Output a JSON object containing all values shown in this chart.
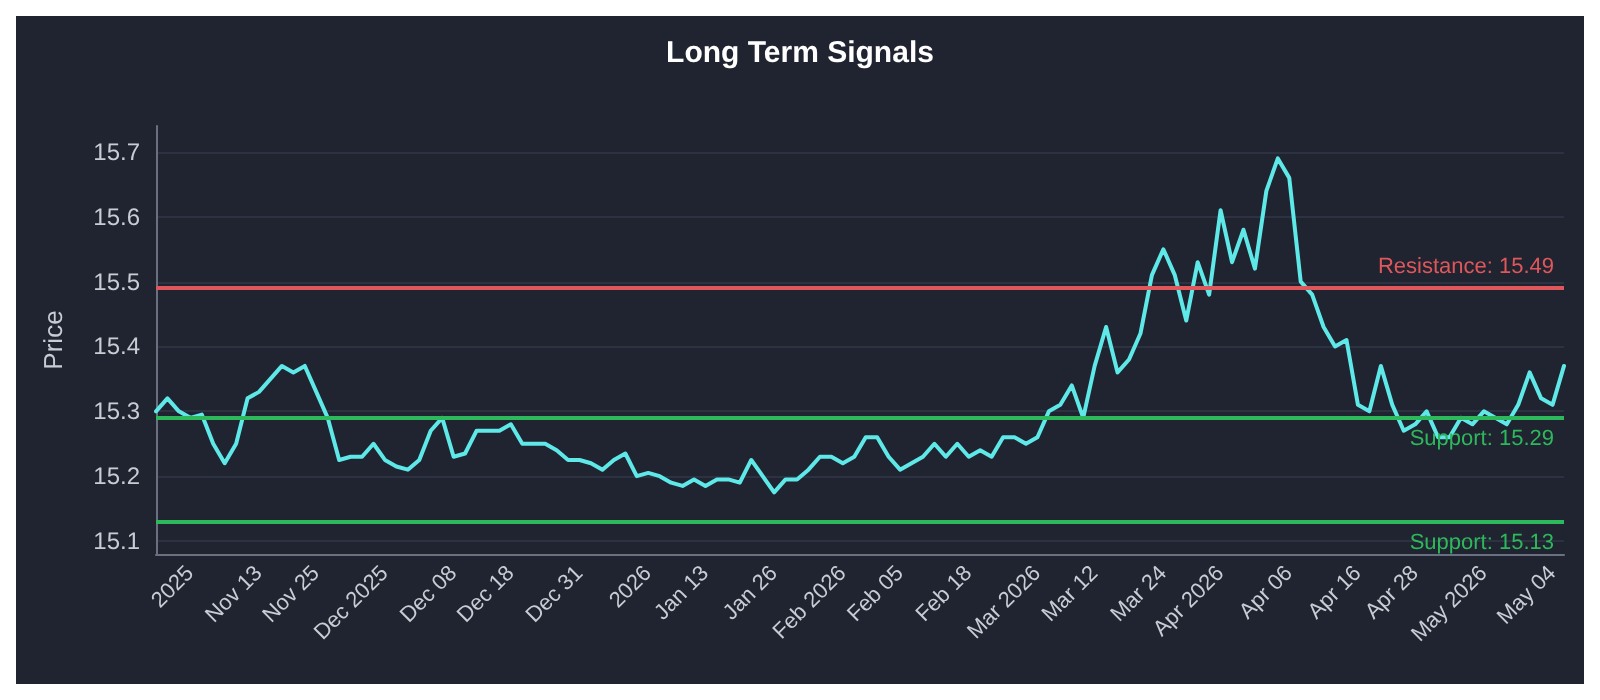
{
  "chart_data": {
    "type": "line",
    "title": "Long Term Signals",
    "ylabel": "Price",
    "categories": [
      null,
      null,
      null,
      "2025",
      null,
      null,
      null,
      null,
      null,
      "Nov 13",
      null,
      null,
      null,
      null,
      "Nov 25",
      null,
      null,
      null,
      null,
      null,
      "Dec 2025",
      null,
      null,
      null,
      null,
      null,
      "Dec 08",
      null,
      null,
      null,
      null,
      "Dec 18",
      null,
      null,
      null,
      null,
      null,
      "Dec 31",
      null,
      null,
      null,
      null,
      null,
      "2026",
      null,
      null,
      null,
      null,
      "Jan 13",
      null,
      null,
      null,
      null,
      null,
      "Jan 26",
      null,
      null,
      null,
      null,
      null,
      "Feb 2026",
      null,
      null,
      null,
      null,
      "Feb 05",
      null,
      null,
      null,
      null,
      null,
      "Feb 18",
      null,
      null,
      null,
      null,
      null,
      "Mar 2026",
      null,
      null,
      null,
      null,
      "Mar 12",
      null,
      null,
      null,
      null,
      null,
      "Mar 24",
      null,
      null,
      null,
      null,
      "Apr 2026",
      null,
      null,
      null,
      null,
      null,
      "Apr 06",
      null,
      null,
      null,
      null,
      null,
      "Apr 16",
      null,
      null,
      null,
      null,
      "Apr 28",
      null,
      null,
      null,
      null,
      null,
      "May 2026",
      null,
      null,
      null,
      null,
      null,
      "May 04",
      null
    ],
    "series": [
      {
        "color": "#5ee8e8",
        "values": [
          15.3,
          15.32,
          15.3,
          15.29,
          15.295,
          15.25,
          15.22,
          15.25,
          15.32,
          15.33,
          15.35,
          15.37,
          15.36,
          15.37,
          15.33,
          15.29,
          15.225,
          15.23,
          15.23,
          15.25,
          15.225,
          15.215,
          15.21,
          15.225,
          15.27,
          15.29,
          15.23,
          15.235,
          15.27,
          15.27,
          15.27,
          15.28,
          15.25,
          15.25,
          15.25,
          15.24,
          15.225,
          15.225,
          15.22,
          15.21,
          15.225,
          15.235,
          15.2,
          15.205,
          15.2,
          15.19,
          15.185,
          15.195,
          15.185,
          15.195,
          15.195,
          15.19,
          15.225,
          15.2,
          15.175,
          15.195,
          15.195,
          15.21,
          15.23,
          15.23,
          15.22,
          15.23,
          15.26,
          15.26,
          15.23,
          15.21,
          15.22,
          15.23,
          15.25,
          15.23,
          15.25,
          15.23,
          15.24,
          15.23,
          15.26,
          15.26,
          15.25,
          15.26,
          15.3,
          15.31,
          15.34,
          15.29,
          15.37,
          15.43,
          15.36,
          15.38,
          15.42,
          15.51,
          15.55,
          15.51,
          15.44,
          15.53,
          15.48,
          15.61,
          15.53,
          15.58,
          15.52,
          15.64,
          15.69,
          15.66,
          15.5,
          15.48,
          15.43,
          15.4,
          15.41,
          15.31,
          15.3,
          15.37,
          15.31,
          15.27,
          15.28,
          15.3,
          15.26,
          15.26,
          15.29,
          15.28,
          15.3,
          15.29,
          15.28,
          15.31,
          15.36,
          15.32,
          15.31,
          15.37
        ]
      }
    ],
    "ylim": [
      15.08,
      15.74
    ],
    "yticks": [
      15.1,
      15.2,
      15.3,
      15.4,
      15.5,
      15.6,
      15.7
    ],
    "ref_lines": [
      {
        "axis": "y",
        "value": 15.49,
        "label": "Resistance: 15.49",
        "color": "#e0575b"
      },
      {
        "axis": "y",
        "value": 15.29,
        "label": "Support: 15.29",
        "color": "#2eb85c"
      },
      {
        "axis": "y",
        "value": 15.13,
        "label": "Support: 15.13",
        "color": "#2eb85c"
      }
    ],
    "grid": "y",
    "marker": "none",
    "line_style": "solid"
  }
}
